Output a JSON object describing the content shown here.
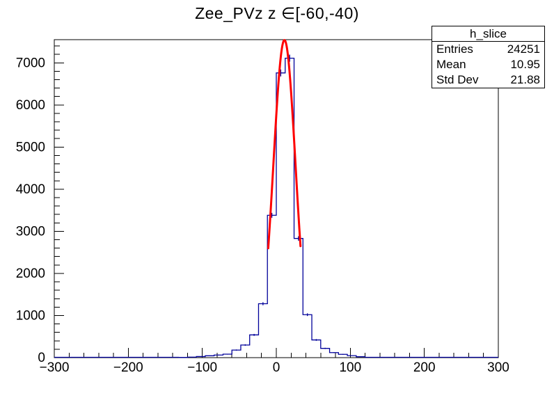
{
  "window_title": "",
  "colors": {
    "background": "#ffffff",
    "axis": "#000000",
    "histogram": "#00009a",
    "fit_curve": "#ff0000",
    "text": "#000000"
  },
  "stats_box": {
    "title": "h_slice",
    "rows": [
      {
        "label": "Entries",
        "value": "24251"
      },
      {
        "label": "Mean",
        "value": "10.95"
      },
      {
        "label": "Std Dev",
        "value": "21.88"
      }
    ]
  },
  "chart_data": {
    "type": "bar",
    "subtype": "root-histogram-with-gaussian-fit",
    "title": "Zee_PVz z ∈[-60,-40)",
    "xlabel": "",
    "ylabel": "",
    "grid": false,
    "legend_position": "none",
    "x_axis": {
      "min": -300,
      "max": 300,
      "major_tick_step": 100,
      "minor_tick_step": 20,
      "ticks": [
        {
          "value": -300,
          "label": "−300"
        },
        {
          "value": -200,
          "label": "−200"
        },
        {
          "value": -100,
          "label": "−100"
        },
        {
          "value": 0,
          "label": "0"
        },
        {
          "value": 100,
          "label": "100"
        },
        {
          "value": 200,
          "label": "200"
        },
        {
          "value": 300,
          "label": "300"
        }
      ]
    },
    "y_axis": {
      "min": 0,
      "max": 7550,
      "major_tick_step": 1000,
      "minor_tick_step": 200,
      "ticks": [
        {
          "value": 0,
          "label": "0"
        },
        {
          "value": 1000,
          "label": "1000"
        },
        {
          "value": 2000,
          "label": "2000"
        },
        {
          "value": 3000,
          "label": "3000"
        },
        {
          "value": 4000,
          "label": "4000"
        },
        {
          "value": 5000,
          "label": "5000"
        },
        {
          "value": 6000,
          "label": "6000"
        },
        {
          "value": 7000,
          "label": "7000"
        }
      ]
    },
    "histogram": {
      "name": "h_slice",
      "range_min": -300,
      "range_max": 300,
      "bin_width": 12,
      "nonzero_first_edge": -132,
      "values": [
        5,
        12,
        26,
        44,
        62,
        82,
        180,
        300,
        540,
        1280,
        3380,
        6760,
        7110,
        2830,
        1020,
        420,
        220,
        120,
        78,
        48,
        22,
        8
      ],
      "error_bars": "sqrt"
    },
    "fit": {
      "model": "gaussian",
      "amplitude": 7540,
      "mean": 11,
      "sigma": 15,
      "draw_range": [
        -10.9,
        32.9
      ],
      "line_width": 3
    }
  }
}
